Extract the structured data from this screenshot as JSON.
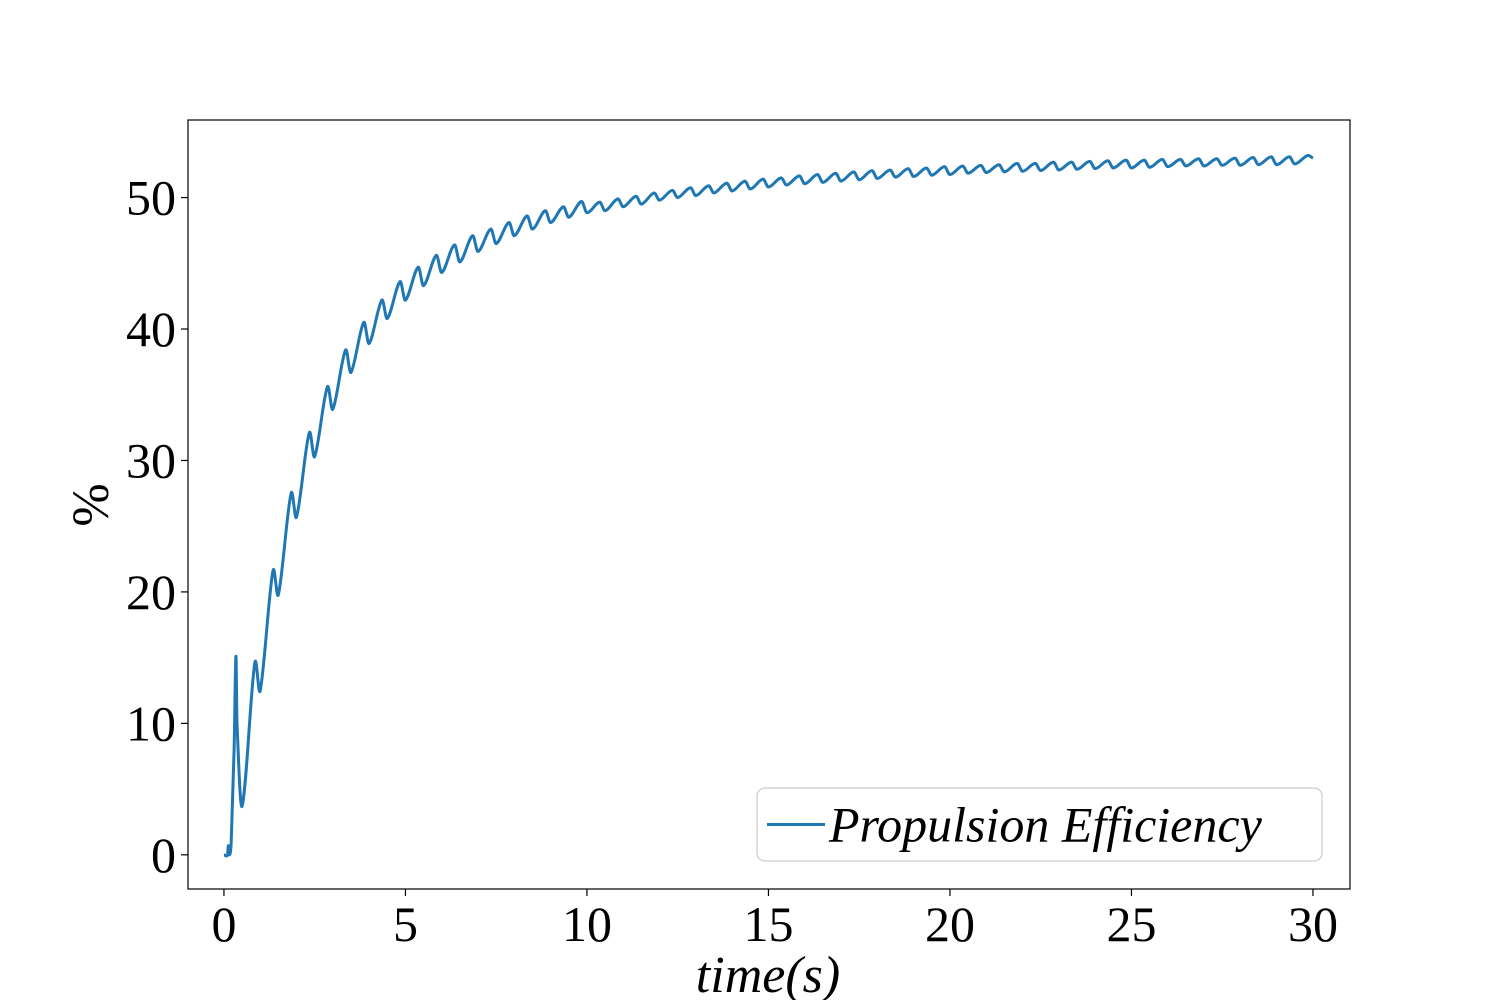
{
  "chart_data": {
    "type": "line",
    "xlabel": "time(s)",
    "ylabel": "%",
    "x": [
      0,
      0.1,
      0.12,
      0.15,
      0.2,
      0.28,
      0.33,
      0.36,
      0.5,
      0.85,
      1.0,
      1.35,
      1.5,
      1.85,
      2.0,
      2.35,
      2.5,
      2.85,
      3.0,
      3.35,
      3.5,
      3.85,
      4.0,
      4.35,
      4.5,
      4.85,
      5.0,
      5.35,
      5.5,
      5.85,
      6.0,
      6.35,
      6.5,
      6.85,
      7.0,
      7.35,
      7.5,
      7.85,
      8.0,
      8.35,
      8.5,
      8.85,
      9.0,
      9.35,
      9.5,
      9.85,
      10,
      10.35,
      10.5,
      10.85,
      11,
      11.35,
      11.5,
      11.85,
      12,
      12.35,
      12.5,
      12.85,
      13,
      13.35,
      13.5,
      13.85,
      14,
      14.35,
      14.5,
      14.85,
      15,
      15.35,
      15.5,
      15.85,
      16,
      16.35,
      16.5,
      16.85,
      17,
      17.35,
      17.5,
      17.85,
      18,
      18.35,
      18.5,
      18.85,
      19,
      19.35,
      19.5,
      19.85,
      20,
      20.35,
      20.5,
      20.85,
      21,
      21.35,
      21.5,
      21.85,
      22,
      22.35,
      22.5,
      22.85,
      23,
      23.35,
      23.5,
      23.85,
      24,
      24.35,
      24.5,
      24.85,
      25,
      25.35,
      25.5,
      25.85,
      26,
      26.35,
      26.5,
      26.85,
      27,
      27.35,
      27.5,
      27.85,
      28,
      28.35,
      28.5,
      28.85,
      29,
      29.35,
      29.5,
      29.85,
      30
    ],
    "series": [
      {
        "name": "Propulsion Efficiency",
        "color": "#1f77b4",
        "values": [
          0,
          0,
          0.7,
          0,
          1.0,
          8,
          15.1,
          10,
          3.7,
          14.6,
          12.5,
          21.6,
          19.8,
          27.5,
          25.7,
          32.1,
          30.3,
          35.6,
          33.9,
          38.4,
          36.7,
          40.5,
          38.9,
          42.2,
          40.8,
          43.6,
          42.2,
          44.7,
          43.3,
          45.6,
          44.3,
          46.4,
          45.1,
          47.1,
          45.9,
          47.6,
          46.5,
          48.1,
          47.1,
          48.6,
          47.6,
          49.0,
          48.1,
          49.3,
          48.5,
          49.7,
          48.85,
          49.65,
          49.0,
          49.9,
          49.3,
          50.1,
          49.5,
          50.35,
          49.8,
          50.55,
          50.0,
          50.75,
          50.15,
          50.9,
          50.35,
          51.1,
          50.5,
          51.25,
          50.65,
          51.4,
          50.8,
          51.5,
          50.95,
          51.65,
          51.05,
          51.75,
          51.15,
          51.85,
          51.25,
          51.95,
          51.35,
          52.05,
          51.45,
          52.1,
          51.55,
          52.2,
          51.6,
          52.25,
          51.7,
          52.35,
          51.75,
          52.4,
          51.85,
          52.45,
          51.9,
          52.5,
          51.95,
          52.6,
          52.0,
          52.6,
          52.05,
          52.7,
          52.1,
          52.7,
          52.15,
          52.75,
          52.2,
          52.8,
          52.25,
          52.85,
          52.25,
          52.85,
          52.3,
          52.9,
          52.35,
          52.9,
          52.4,
          52.95,
          52.4,
          52.95,
          52.45,
          53.0,
          52.45,
          53.05,
          52.5,
          53.1,
          52.5,
          53.1,
          52.55,
          53.2,
          53.0
        ]
      }
    ],
    "xlim": [
      -0.99,
      31.02
    ],
    "ylim": [
      -2.6,
      55.9
    ],
    "xticks": [
      0,
      5,
      10,
      15,
      20,
      25,
      30
    ],
    "yticks": [
      0,
      10,
      20,
      30,
      40,
      50
    ],
    "legend": "lower right"
  }
}
